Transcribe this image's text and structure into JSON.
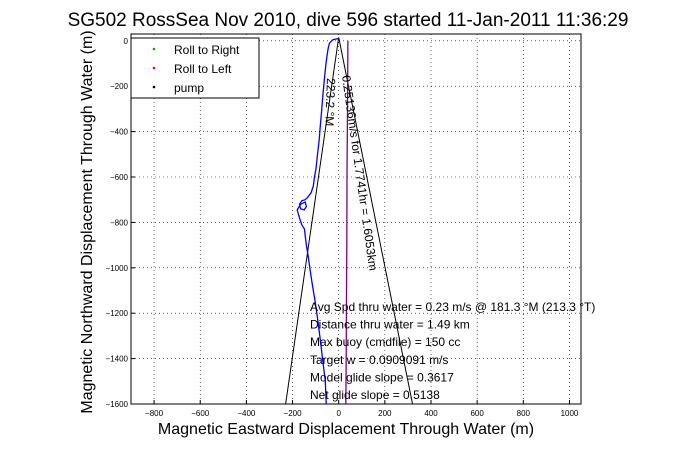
{
  "chart_data": {
    "type": "line",
    "title": "SG502 RossSea Nov 2010, dive 596 started 11-Jan-2011 11:36:29",
    "xlabel": "Magnetic Eastward Displacement Through Water (m)",
    "ylabel": "Magnetic Northward Displacement Through Water (m)",
    "xlim": [
      -900,
      1050
    ],
    "ylim": [
      -1600,
      30
    ],
    "x_ticks": [
      -800,
      -600,
      -400,
      -200,
      0,
      200,
      400,
      600,
      800,
      1000
    ],
    "y_ticks": [
      0,
      -200,
      -400,
      -600,
      -800,
      -1000,
      -1200,
      -1400,
      -1600
    ],
    "grid": true,
    "legend": {
      "placement": "top-left",
      "entries": [
        {
          "label": "Roll to Right",
          "color": "#00aa00",
          "marker": "."
        },
        {
          "label": "Roll to Left",
          "color": "#ff0000",
          "marker": "."
        },
        {
          "label": "pump",
          "color": "#000000",
          "marker": "."
        }
      ]
    },
    "series": [
      {
        "color": "#0000ff",
        "x": [
          0,
          -25,
          -40,
          -45,
          -50,
          -55,
          -60,
          -65,
          -70,
          -75,
          -80,
          -85,
          -92,
          -98,
          -105,
          -110,
          -120,
          -135,
          -145,
          -160,
          -170,
          -165,
          -150,
          -140,
          -145,
          -165,
          -180,
          -170,
          -160,
          -148,
          -145,
          -140,
          -132,
          -125,
          -118,
          -110,
          -102,
          -95,
          -88,
          -82,
          -76,
          -70,
          -64,
          -58,
          -54
        ],
        "y": [
          10,
          5,
          -10,
          -30,
          -60,
          -100,
          -150,
          -200,
          -260,
          -320,
          -380,
          -440,
          -500,
          -560,
          -600,
          -640,
          -670,
          -690,
          -700,
          -705,
          -720,
          -740,
          -745,
          -730,
          -710,
          -720,
          -745,
          -780,
          -810,
          -830,
          -860,
          -900,
          -950,
          -1000,
          -1050,
          -1100,
          -1150,
          -1200,
          -1250,
          -1300,
          -1350,
          -1400,
          -1450,
          -1500,
          -1600
        ]
      },
      {
        "color": "#800080",
        "x": [
          40,
          38,
          36,
          35,
          34,
          33,
          32,
          31
        ],
        "y": [
          0,
          -300,
          -600,
          -900,
          -1100,
          -1300,
          -1450,
          -1600
        ]
      }
    ],
    "guide_lines": [
      {
        "color": "#000000",
        "x": [
          0,
          -230
        ],
        "y": [
          15,
          -1600
        ]
      },
      {
        "color": "#000000",
        "x": [
          0,
          320
        ],
        "y": [
          15,
          -1600
        ]
      }
    ],
    "annotations": [
      {
        "text": "0.25136m/s for 1.7741hr = 1.6053km",
        "color": "#000000"
      },
      {
        "text": "223.2 °M",
        "color": "#000000"
      }
    ],
    "stats": [
      "Avg Spd thru water = 0.23 m/s @ 181.3  °M (213.3 °T)",
      "Distance thru water = 1.49 km",
      "Max buoy (cmdfile) = 150 cc",
      "Target w = 0.0909091 m/s",
      "Model glide slope = 0.3617",
      "Net glide slope = 0.5138"
    ]
  }
}
